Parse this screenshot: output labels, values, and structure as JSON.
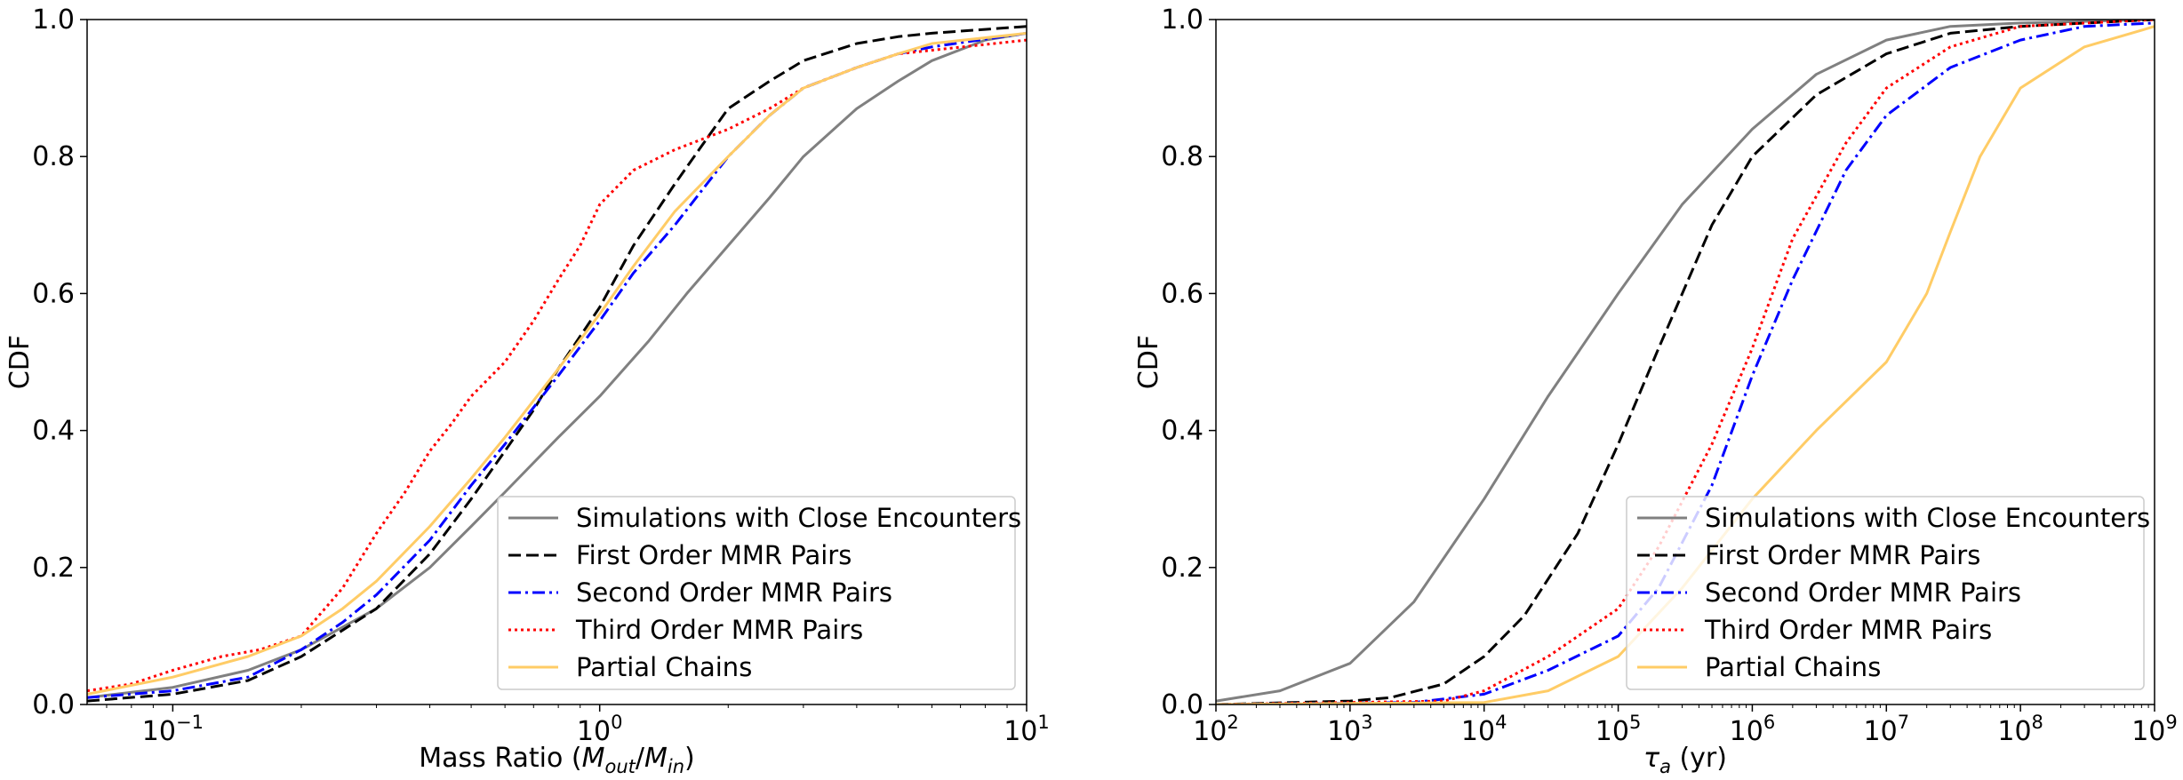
{
  "chart_data": [
    {
      "type": "line",
      "xlabel": "Mass Ratio (M_out/M_in)",
      "xlabel_parts": {
        "prefix": "Mass Ratio (",
        "sym1": "M",
        "sub1": "out",
        "slash": "/",
        "sym2": "M",
        "sub2": "in",
        "suffix": ")"
      },
      "ylabel": "CDF",
      "xscale": "log",
      "xlim": [
        0.063,
        10
      ],
      "ylim": [
        0,
        1
      ],
      "xticks": [
        {
          "value": 0.1,
          "base": "10",
          "exp": "−1"
        },
        {
          "value": 1,
          "base": "10",
          "exp": "0"
        },
        {
          "value": 10,
          "base": "10",
          "exp": "1"
        }
      ],
      "yticks": [
        "0.0",
        "0.2",
        "0.4",
        "0.6",
        "0.8",
        "1.0"
      ],
      "legend_position": "lower-right",
      "series": [
        {
          "name": "Simulations with Close Encounters",
          "color": "#808080",
          "style": "solid",
          "x": [
            0.063,
            0.1,
            0.15,
            0.2,
            0.3,
            0.4,
            0.5,
            0.6,
            0.8,
            1.0,
            1.3,
            1.6,
            2.0,
            2.5,
            3.0,
            4.0,
            5.0,
            6.0,
            8.0,
            10.0
          ],
          "y": [
            0.01,
            0.025,
            0.05,
            0.08,
            0.14,
            0.2,
            0.26,
            0.31,
            0.39,
            0.45,
            0.53,
            0.6,
            0.67,
            0.74,
            0.8,
            0.87,
            0.91,
            0.94,
            0.97,
            0.98
          ]
        },
        {
          "name": "First Order MMR Pairs",
          "color": "#000000",
          "style": "dashed",
          "x": [
            0.063,
            0.1,
            0.15,
            0.2,
            0.3,
            0.4,
            0.5,
            0.6,
            0.7,
            0.8,
            1.0,
            1.2,
            1.5,
            1.8,
            2.0,
            2.5,
            3.0,
            4.0,
            5.0,
            6.0,
            10.0
          ],
          "y": [
            0.005,
            0.015,
            0.035,
            0.07,
            0.14,
            0.22,
            0.3,
            0.37,
            0.43,
            0.49,
            0.58,
            0.67,
            0.76,
            0.83,
            0.87,
            0.91,
            0.94,
            0.965,
            0.975,
            0.98,
            0.99
          ]
        },
        {
          "name": "Second Order MMR Pairs",
          "color": "#0000ff",
          "style": "dashdot",
          "x": [
            0.063,
            0.1,
            0.15,
            0.2,
            0.25,
            0.3,
            0.4,
            0.5,
            0.6,
            0.8,
            1.0,
            1.2,
            1.5,
            2.0,
            2.5,
            3.0,
            4.0,
            5.0,
            6.0,
            10.0
          ],
          "y": [
            0.01,
            0.02,
            0.04,
            0.08,
            0.12,
            0.16,
            0.24,
            0.32,
            0.38,
            0.48,
            0.56,
            0.63,
            0.7,
            0.8,
            0.86,
            0.9,
            0.93,
            0.95,
            0.96,
            0.98
          ]
        },
        {
          "name": "Third Order MMR Pairs",
          "color": "#ff0000",
          "style": "dotted",
          "x": [
            0.063,
            0.08,
            0.1,
            0.13,
            0.16,
            0.2,
            0.25,
            0.3,
            0.35,
            0.4,
            0.45,
            0.5,
            0.6,
            0.7,
            0.8,
            0.9,
            1.0,
            1.2,
            1.5,
            2.0,
            2.5,
            3.0,
            4.0,
            5.0,
            10.0
          ],
          "y": [
            0.02,
            0.03,
            0.05,
            0.07,
            0.08,
            0.1,
            0.17,
            0.25,
            0.31,
            0.37,
            0.41,
            0.45,
            0.5,
            0.56,
            0.62,
            0.67,
            0.73,
            0.78,
            0.81,
            0.84,
            0.87,
            0.9,
            0.93,
            0.95,
            0.97
          ]
        },
        {
          "name": "Partial Chains",
          "color": "#ffcc66",
          "style": "solid",
          "x": [
            0.063,
            0.1,
            0.15,
            0.2,
            0.25,
            0.3,
            0.4,
            0.5,
            0.6,
            0.8,
            1.0,
            1.2,
            1.5,
            2.0,
            2.5,
            3.0,
            4.0,
            5.0,
            6.0,
            10.0
          ],
          "y": [
            0.015,
            0.04,
            0.07,
            0.1,
            0.14,
            0.18,
            0.26,
            0.33,
            0.39,
            0.49,
            0.57,
            0.64,
            0.72,
            0.8,
            0.86,
            0.9,
            0.93,
            0.95,
            0.965,
            0.98
          ]
        }
      ]
    },
    {
      "type": "line",
      "xlabel": "τ_a (yr)",
      "xlabel_parts": {
        "sym": "τ",
        "sub": "a",
        "suffix": " (yr)"
      },
      "ylabel": "CDF",
      "xscale": "log",
      "xlim": [
        100,
        1000000000
      ],
      "ylim": [
        0,
        1
      ],
      "xticks": [
        {
          "value": 100,
          "base": "10",
          "exp": "2"
        },
        {
          "value": 1000,
          "base": "10",
          "exp": "3"
        },
        {
          "value": 10000,
          "base": "10",
          "exp": "4"
        },
        {
          "value": 100000,
          "base": "10",
          "exp": "5"
        },
        {
          "value": 1000000,
          "base": "10",
          "exp": "6"
        },
        {
          "value": 10000000,
          "base": "10",
          "exp": "7"
        },
        {
          "value": 100000000,
          "base": "10",
          "exp": "8"
        },
        {
          "value": 1000000000,
          "base": "10",
          "exp": "9"
        }
      ],
      "yticks": [
        "0.0",
        "0.2",
        "0.4",
        "0.6",
        "0.8",
        "1.0"
      ],
      "legend_position": "lower-right",
      "series": [
        {
          "name": "Simulations with Close Encounters",
          "color": "#808080",
          "style": "solid",
          "x": [
            100,
            300,
            1000,
            3000,
            10000,
            30000,
            100000,
            300000,
            1000000,
            3000000,
            10000000,
            30000000,
            100000000,
            1000000000
          ],
          "y": [
            0.005,
            0.02,
            0.06,
            0.15,
            0.3,
            0.45,
            0.6,
            0.73,
            0.84,
            0.92,
            0.97,
            0.99,
            0.995,
            1.0
          ]
        },
        {
          "name": "First Order MMR Pairs",
          "color": "#000000",
          "style": "dashed",
          "x": [
            100,
            1000,
            2000,
            5000,
            10000,
            20000,
            50000,
            100000,
            200000,
            500000,
            1000000,
            3000000,
            10000000,
            30000000,
            100000000,
            1000000000
          ],
          "y": [
            0.0,
            0.005,
            0.01,
            0.03,
            0.07,
            0.13,
            0.25,
            0.38,
            0.52,
            0.7,
            0.8,
            0.89,
            0.95,
            0.98,
            0.99,
            1.0
          ]
        },
        {
          "name": "Second Order MMR Pairs",
          "color": "#0000ff",
          "style": "dashdot",
          "x": [
            100,
            3000,
            10000,
            30000,
            100000,
            200000,
            500000,
            1000000,
            2000000,
            5000000,
            10000000,
            30000000,
            100000000,
            300000000,
            1000000000
          ],
          "y": [
            0.0,
            0.003,
            0.015,
            0.05,
            0.1,
            0.17,
            0.32,
            0.48,
            0.62,
            0.78,
            0.86,
            0.93,
            0.97,
            0.99,
            0.995
          ]
        },
        {
          "name": "Third Order MMR Pairs",
          "color": "#ff0000",
          "style": "dotted",
          "x": [
            100,
            5000,
            10000,
            30000,
            100000,
            200000,
            500000,
            1000000,
            2000000,
            5000000,
            10000000,
            30000000,
            100000000,
            1000000000
          ],
          "y": [
            0.0,
            0.005,
            0.02,
            0.07,
            0.14,
            0.23,
            0.38,
            0.52,
            0.68,
            0.82,
            0.9,
            0.96,
            0.99,
            1.0
          ]
        },
        {
          "name": "Partial Chains",
          "color": "#ffcc66",
          "style": "solid",
          "x": [
            100,
            10000,
            30000,
            100000,
            300000,
            1000000,
            3000000,
            10000000,
            20000000,
            30000000,
            50000000,
            100000000,
            300000000,
            1000000000
          ],
          "y": [
            0.0,
            0.003,
            0.02,
            0.07,
            0.17,
            0.3,
            0.4,
            0.5,
            0.6,
            0.69,
            0.8,
            0.9,
            0.96,
            0.99
          ]
        }
      ]
    }
  ]
}
